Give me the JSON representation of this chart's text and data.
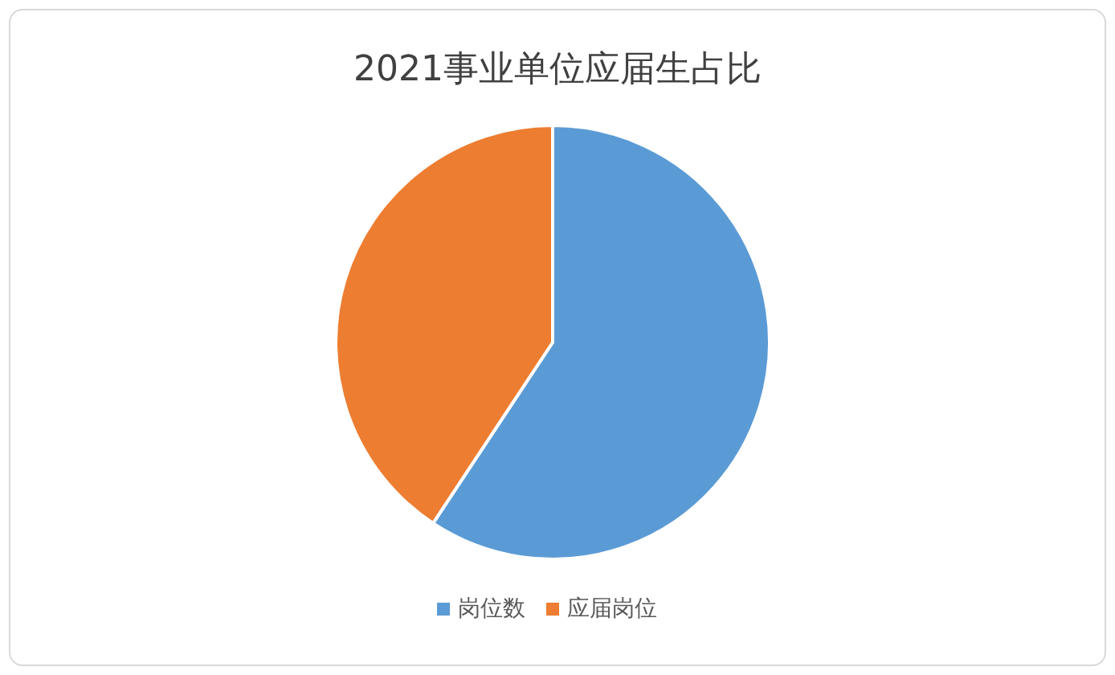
{
  "chart_data": {
    "type": "pie",
    "title": "2021事业单位应届生占比",
    "categories": [
      "岗位数",
      "应届岗位"
    ],
    "values": [
      59.3,
      40.7
    ],
    "colors": [
      "#5b9bd5",
      "#ed7d31"
    ],
    "legend": "bottom"
  }
}
